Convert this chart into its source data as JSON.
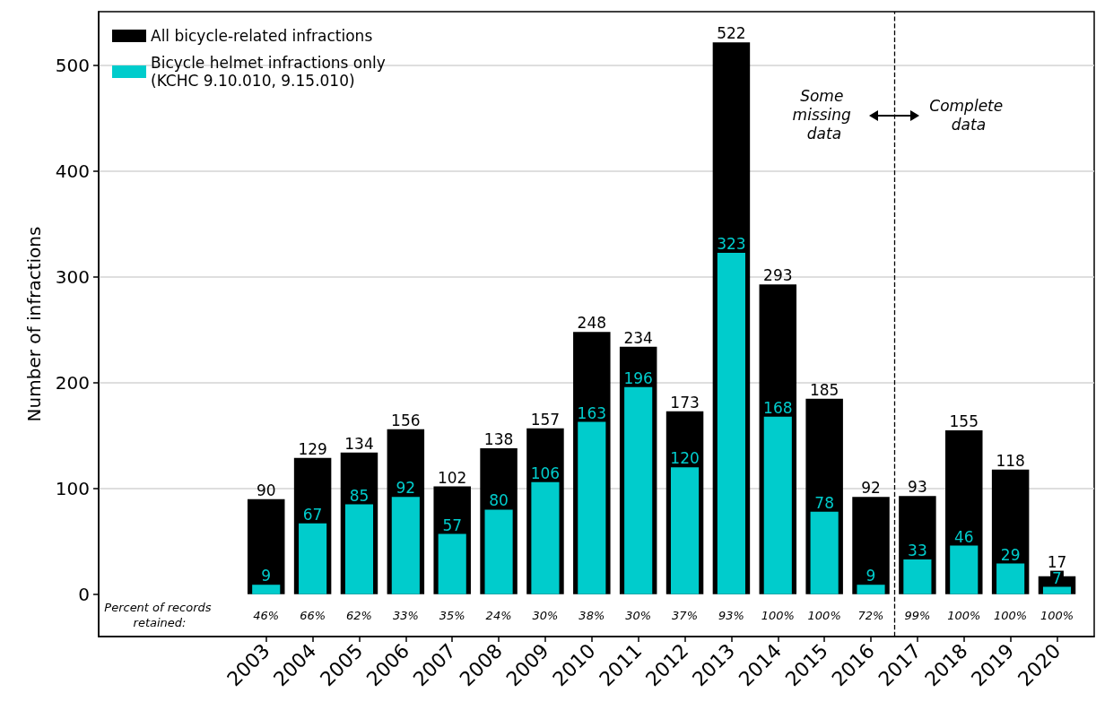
{
  "chart_data": {
    "type": "bar",
    "ylabel": "Number of infractions",
    "x": [
      2003,
      2004,
      2005,
      2006,
      2007,
      2008,
      2009,
      2010,
      2011,
      2012,
      2013,
      2014,
      2015,
      2016,
      2017,
      2018,
      2019,
      2020
    ],
    "series": [
      {
        "name": "All bicycle-related infractions",
        "color": "#000000",
        "values": [
          90,
          129,
          134,
          156,
          102,
          138,
          157,
          248,
          234,
          173,
          522,
          293,
          185,
          92,
          93,
          155,
          118,
          17
        ]
      },
      {
        "name": "Bicycle helmet infractions only\n(KCHC 9.10.010, 9.15.010)",
        "color": "#00cccc",
        "values": [
          9,
          67,
          85,
          92,
          57,
          80,
          106,
          163,
          196,
          120,
          323,
          168,
          78,
          9,
          33,
          46,
          29,
          7
        ]
      }
    ],
    "data_labels": true,
    "xlim": [
      1999.4,
      2020.8
    ],
    "xticks": [
      2003,
      2004,
      2005,
      2006,
      2007,
      2008,
      2009,
      2010,
      2011,
      2012,
      2013,
      2014,
      2015,
      2016,
      2017,
      2018,
      2019,
      2020
    ],
    "ylim": [
      -40,
      551
    ],
    "yticks": [
      0,
      100,
      200,
      300,
      400,
      500
    ],
    "grid": "y",
    "legend": "top left",
    "ref_lines": [
      {
        "axis": "x",
        "value": 2016.5,
        "line_style": "dashed",
        "color": "#000000"
      }
    ],
    "annotations": [
      "Percent of records retained:",
      "Some missing data",
      "Complete data",
      "46%",
      "66%",
      "62%",
      "33%",
      "35%",
      "24%",
      "30%",
      "38%",
      "30%",
      "37%",
      "93%",
      "100%",
      "100%",
      "72%",
      "99%",
      "100%",
      "100%",
      "100%"
    ]
  }
}
